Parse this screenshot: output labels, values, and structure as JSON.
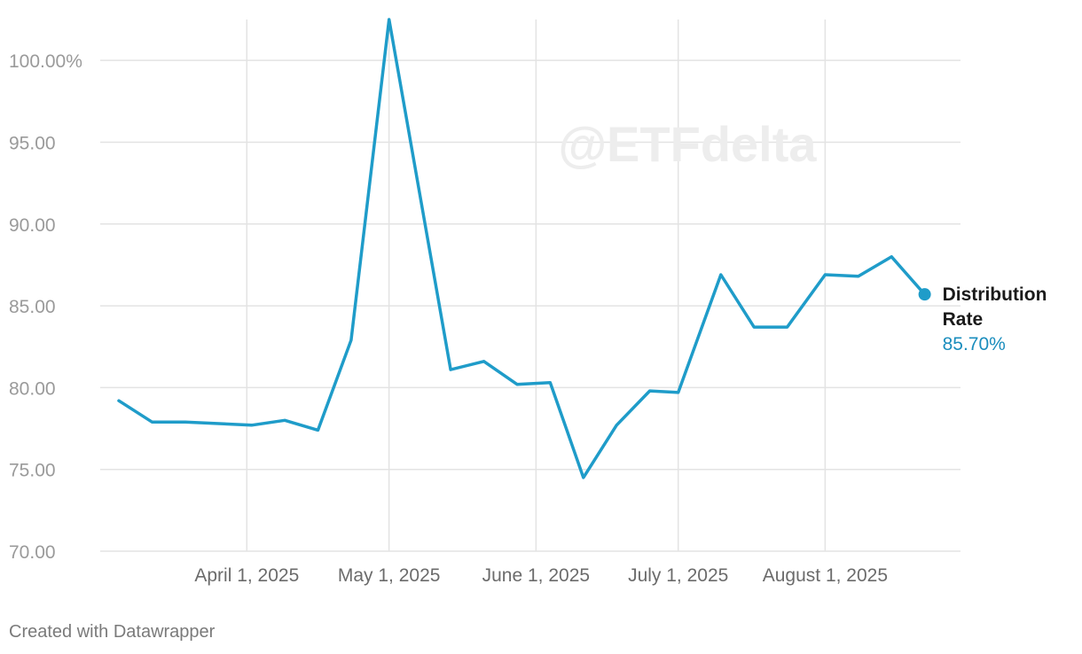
{
  "chart_data": {
    "type": "line",
    "title": "",
    "xlabel": "",
    "ylabel": "",
    "ylim": [
      70,
      102.5
    ],
    "yticks": [
      70,
      75,
      80,
      85,
      90,
      95,
      100
    ],
    "ytick_labels": [
      "70.00",
      "75.00",
      "80.00",
      "85.00",
      "90.00",
      "95.00",
      "100.00%"
    ],
    "xlim": [
      "2025-03-05",
      "2025-08-26"
    ],
    "xticks": [
      "2025-04-01",
      "2025-05-01",
      "2025-06-01",
      "2025-07-01",
      "2025-08-01"
    ],
    "xtick_labels": [
      "April 1, 2025",
      "May 1, 2025",
      "June 1, 2025",
      "July 1, 2025",
      "August 1, 2025"
    ],
    "grid": true,
    "series": [
      {
        "name": "Distribution Rate",
        "color": "#1f9cc9",
        "x": [
          "2025-03-05",
          "2025-03-12",
          "2025-03-19",
          "2025-04-02",
          "2025-04-09",
          "2025-04-16",
          "2025-04-23",
          "2025-05-01",
          "2025-05-14",
          "2025-05-21",
          "2025-05-28",
          "2025-06-04",
          "2025-06-11",
          "2025-06-18",
          "2025-06-25",
          "2025-07-01",
          "2025-07-10",
          "2025-07-17",
          "2025-07-24",
          "2025-08-01",
          "2025-08-08",
          "2025-08-15",
          "2025-08-22"
        ],
        "y": [
          79.2,
          77.9,
          77.9,
          77.7,
          78.0,
          77.4,
          82.9,
          102.5,
          81.1,
          81.6,
          80.2,
          80.3,
          74.5,
          77.7,
          79.8,
          79.7,
          86.9,
          83.7,
          83.7,
          86.9,
          86.8,
          88.0,
          85.7
        ]
      }
    ],
    "end_label": {
      "name_lines": [
        "Distribution",
        "Rate"
      ],
      "value": "85.70%"
    },
    "watermark": "@ETFdelta"
  },
  "footer": {
    "credit": "Created with Datawrapper"
  }
}
